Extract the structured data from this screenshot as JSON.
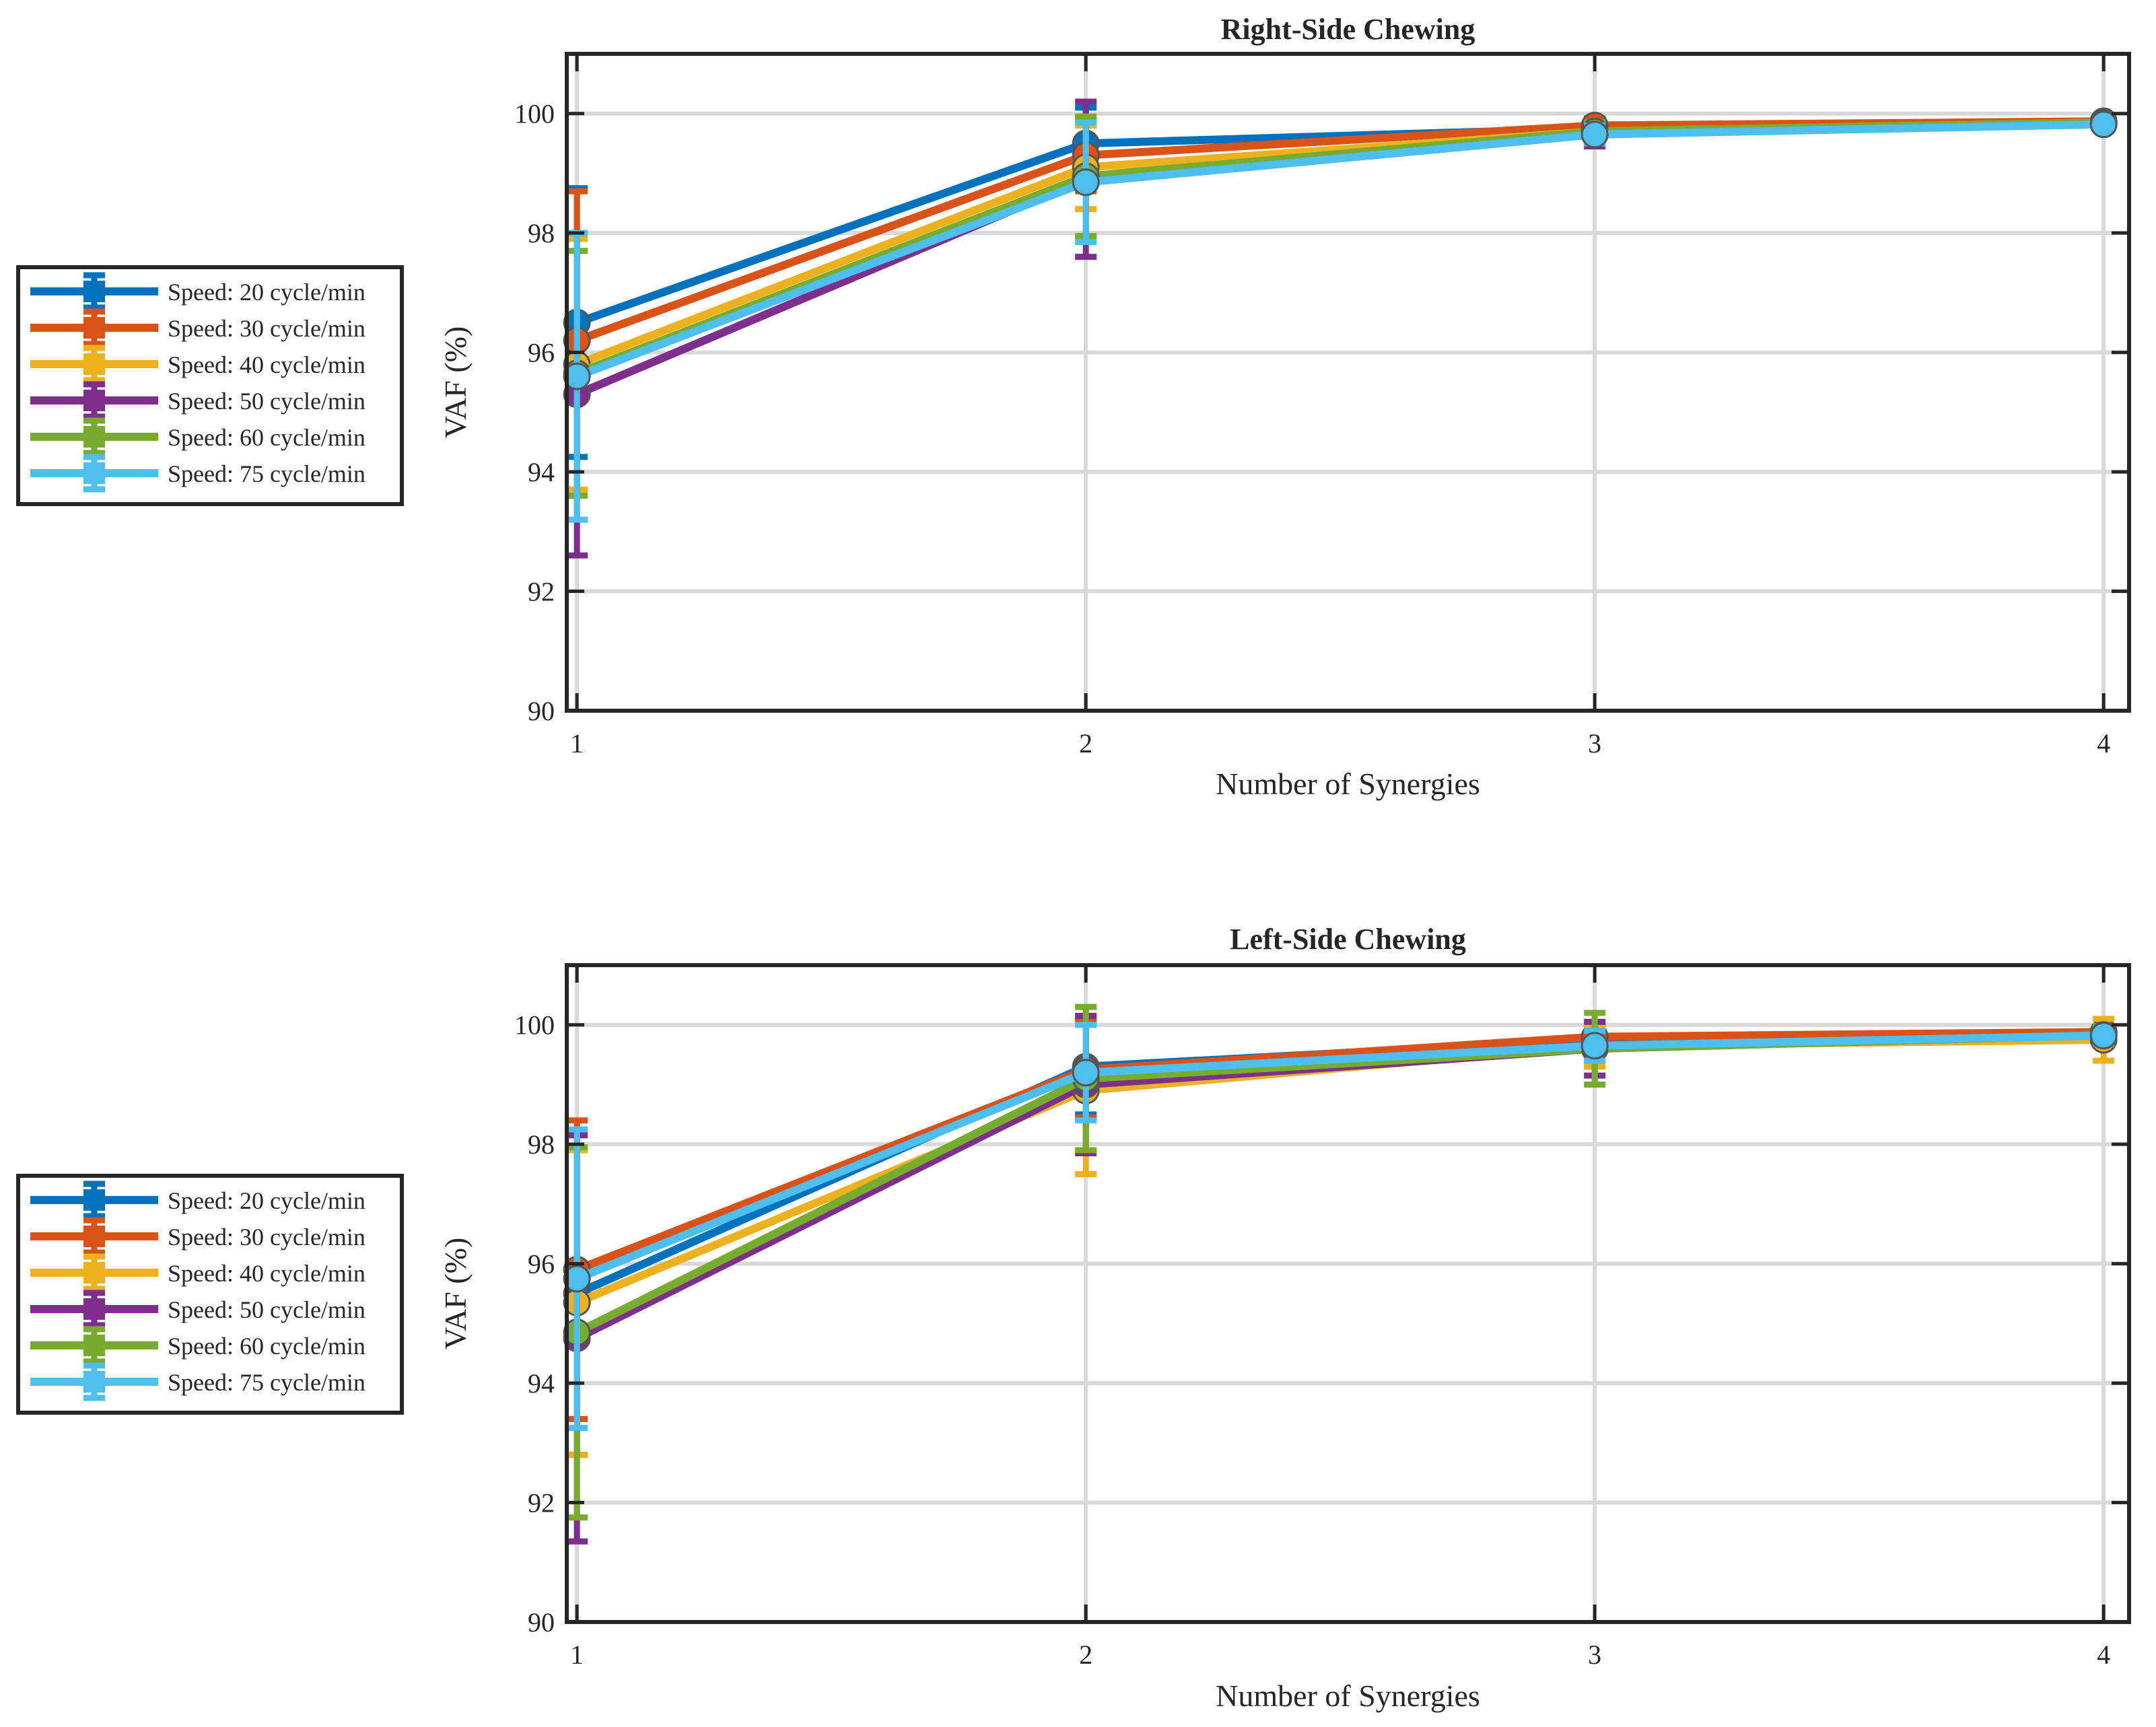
{
  "chart_data": [
    {
      "type": "line",
      "title": "Right-Side Chewing",
      "xlabel": "Number of Synergies",
      "ylabel": "VAF (%)",
      "xlim": [
        0.98,
        4.05
      ],
      "ylim": [
        90,
        101
      ],
      "x": [
        1,
        2,
        3,
        4
      ],
      "xticks": [
        "1",
        "2",
        "3",
        "4"
      ],
      "yticks": [
        "90",
        "92",
        "94",
        "96",
        "98",
        "100"
      ],
      "grid": true,
      "legend": "outside-left",
      "series": [
        {
          "name": "Speed: 20 cycle/min",
          "color": "#0072BD",
          "values": [
            96.5,
            99.5,
            99.75,
            99.85
          ],
          "err": [
            2.25,
            0.6,
            0.15,
            0.08
          ]
        },
        {
          "name": "Speed: 30 cycle/min",
          "color": "#D95319",
          "values": [
            96.2,
            99.3,
            99.8,
            99.87
          ],
          "err": [
            2.5,
            0.6,
            0.12,
            0.07
          ]
        },
        {
          "name": "Speed: 40 cycle/min",
          "color": "#EDB120",
          "values": [
            95.8,
            99.1,
            99.7,
            99.85
          ],
          "err": [
            2.1,
            0.7,
            0.15,
            0.08
          ]
        },
        {
          "name": "Speed: 50 cycle/min",
          "color": "#7E2F8E",
          "values": [
            95.3,
            98.9,
            99.65,
            99.83
          ],
          "err": [
            2.7,
            1.3,
            0.2,
            0.1
          ]
        },
        {
          "name": "Speed: 60 cycle/min",
          "color": "#77AC30",
          "values": [
            95.65,
            98.95,
            99.7,
            99.85
          ],
          "err": [
            2.05,
            1.0,
            0.15,
            0.08
          ]
        },
        {
          "name": "Speed: 75 cycle/min",
          "color": "#4DBEEE",
          "values": [
            95.6,
            98.85,
            99.65,
            99.82
          ],
          "err": [
            2.4,
            1.0,
            0.15,
            0.1
          ]
        }
      ]
    },
    {
      "type": "line",
      "title": "Left-Side Chewing",
      "xlabel": "Number of Synergies",
      "ylabel": "VAF (%)",
      "xlim": [
        0.98,
        4.05
      ],
      "ylim": [
        90,
        101
      ],
      "x": [
        1,
        2,
        3,
        4
      ],
      "xticks": [
        "1",
        "2",
        "3",
        "4"
      ],
      "yticks": [
        "90",
        "92",
        "94",
        "96",
        "98",
        "100"
      ],
      "grid": true,
      "legend": "outside-left",
      "series": [
        {
          "name": "Speed: 20 cycle/min",
          "color": "#0072BD",
          "values": [
            95.5,
            99.3,
            99.75,
            99.87
          ],
          "err": [
            2.7,
            0.8,
            0.25,
            0.1
          ]
        },
        {
          "name": "Speed: 30 cycle/min",
          "color": "#D95319",
          "values": [
            95.9,
            99.25,
            99.8,
            99.88
          ],
          "err": [
            2.5,
            0.8,
            0.2,
            0.1
          ]
        },
        {
          "name": "Speed: 40 cycle/min",
          "color": "#EDB120",
          "values": [
            95.35,
            98.9,
            99.65,
            99.75
          ],
          "err": [
            2.55,
            1.4,
            0.35,
            0.35
          ]
        },
        {
          "name": "Speed: 50 cycle/min",
          "color": "#7E2F8E",
          "values": [
            94.75,
            99.0,
            99.6,
            99.83
          ],
          "err": [
            3.4,
            1.15,
            0.45,
            0.15
          ]
        },
        {
          "name": "Speed: 60 cycle/min",
          "color": "#77AC30",
          "values": [
            94.85,
            99.1,
            99.6,
            99.83
          ],
          "err": [
            3.1,
            1.2,
            0.6,
            0.15
          ]
        },
        {
          "name": "Speed: 75 cycle/min",
          "color": "#4DBEEE",
          "values": [
            95.75,
            99.2,
            99.65,
            99.82
          ],
          "err": [
            2.5,
            0.8,
            0.25,
            0.12
          ]
        }
      ]
    }
  ]
}
